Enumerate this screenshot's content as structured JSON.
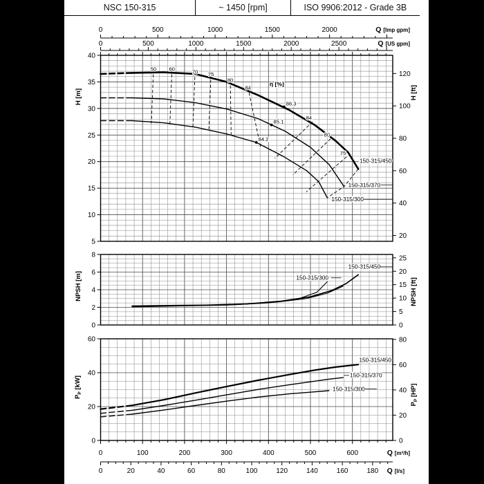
{
  "header": {
    "model": "NSC 150-315",
    "speed": "~ 1450 [rpm]",
    "standard": "ISO 9906:2012 - Grade 3B"
  },
  "axes": {
    "imp_gpm": {
      "q": "Q",
      "unit": "[Imp gpm]",
      "ticks": [
        0,
        500,
        1000,
        1500,
        2000
      ]
    },
    "us_gpm": {
      "q": "Q",
      "unit": "[US gpm]",
      "ticks": [
        0,
        500,
        1000,
        1500,
        2000,
        2500
      ]
    },
    "m3h": {
      "q": "Q",
      "unit": "[m³/h]",
      "ticks": [
        0,
        100,
        200,
        300,
        400,
        500,
        600
      ]
    },
    "ls": {
      "q": "Q",
      "unit": "[l/s]",
      "ticks": [
        0,
        20,
        40,
        60,
        80,
        100,
        120,
        140,
        160,
        180
      ]
    }
  },
  "ylabels": {
    "head_left": {
      "pre": "H",
      "sub": "",
      "post": " [m]"
    },
    "head_right": {
      "pre": "H",
      "sub": "",
      "post": " [ft]"
    },
    "npsh_left": {
      "pre": "NPSH",
      "sub": "",
      "post": " [m]"
    },
    "npsh_right": {
      "pre": "NPSH",
      "sub": "",
      "post": " [ft]"
    },
    "pow_left": {
      "pre": "P",
      "sub": "P",
      "post": " [kW]"
    },
    "pow_right": {
      "pre": "P",
      "sub": "P",
      "post": " [HP]"
    }
  },
  "chart_data": [
    {
      "id": "head",
      "type": "line",
      "title": "Head vs flow with iso-efficiency lines",
      "xlabel": "Q [m³/h]",
      "ylabel": "H [m]",
      "ylim": [
        5,
        40
      ],
      "xlim": [
        0,
        696
      ],
      "y_ticks_left": [
        40,
        35,
        30,
        25,
        20,
        15,
        10,
        5
      ],
      "y_ticks_right_ft": [
        120,
        100,
        80,
        60,
        40,
        20
      ],
      "series": [
        {
          "name": "150-315/450",
          "width": 2.6,
          "dash_until": 75,
          "points": [
            [
              0,
              36.5
            ],
            [
              75,
              36.7
            ],
            [
              150,
              36.8
            ],
            [
              225,
              36.5
            ],
            [
              300,
              35.0
            ],
            [
              375,
              32.5
            ],
            [
              450,
              29.7
            ],
            [
              510,
              26.9
            ],
            [
              560,
              23.9
            ],
            [
              590,
              21.7
            ],
            [
              614,
              18.6
            ]
          ],
          "label": {
            "text": "150-315/450",
            "q": 617,
            "v": 20.1
          }
        },
        {
          "name": "150-315/370",
          "width": 1.4,
          "dash_until": 75,
          "points": [
            [
              0,
              32.0
            ],
            [
              75,
              32.0
            ],
            [
              150,
              31.8
            ],
            [
              225,
              31.1
            ],
            [
              300,
              29.9
            ],
            [
              375,
              28.1
            ],
            [
              440,
              25.7
            ],
            [
              500,
              22.7
            ],
            [
              545,
              19.4
            ],
            [
              580,
              15.3
            ]
          ],
          "label": {
            "text": "150-315/370",
            "q": 590,
            "v": 15.6,
            "leadR": [
              668,
              695
            ]
          }
        },
        {
          "name": "150-315/300",
          "width": 1.4,
          "dash_until": 75,
          "points": [
            [
              0,
              27.7
            ],
            [
              75,
              27.7
            ],
            [
              150,
              27.3
            ],
            [
              225,
              26.5
            ],
            [
              300,
              25.2
            ],
            [
              371,
              23.6
            ],
            [
              437,
              20.9
            ],
            [
              491,
              18.3
            ],
            [
              520,
              16.2
            ],
            [
              540,
              13.2
            ]
          ],
          "label": {
            "text": "150-315/300",
            "q": 550,
            "v": 12.9,
            "leadR": [
              627,
              695
            ]
          }
        }
      ],
      "efficiency": {
        "label": "η [%]",
        "label_pos": [
          420,
          34.2
        ],
        "left_lines": [
          {
            "label": "50",
            "pts": [
              [
                126,
                37.4
              ],
              [
                121,
                27.2
              ]
            ]
          },
          {
            "label": "60",
            "pts": [
              [
                170,
                37.4
              ],
              [
                165,
                27.0
              ]
            ]
          },
          {
            "label": "70",
            "pts": [
              [
                225,
                36.9
              ],
              [
                220,
                26.5
              ]
            ]
          },
          {
            "label": "75",
            "pts": [
              [
                263,
                36.4
              ],
              [
                258,
                26.1
              ]
            ]
          },
          {
            "label": "80",
            "pts": [
              [
                309,
                35.3
              ],
              [
                311,
                25.0
              ]
            ]
          },
          {
            "label": "84",
            "pts": [
              [
                351,
                33.9
              ],
              [
                381,
                22.8
              ]
            ]
          }
        ],
        "right_lines": [
          {
            "label": "84",
            "pts": [
              [
                505,
                27.5
              ],
              [
                415,
                20.6
              ]
            ]
          },
          {
            "label": "80",
            "pts": [
              [
                548,
                24.3
              ],
              [
                458,
                17.5
              ]
            ]
          },
          {
            "label": "75",
            "pts": [
              [
                586,
                20.9
              ],
              [
                490,
                14.3
              ]
            ]
          }
        ],
        "end_envelope": [
          [
            614,
            18.6
          ],
          [
            580,
            15.3
          ],
          [
            540,
            13.2
          ]
        ],
        "bep": [
          {
            "label": "86.3",
            "q": 437,
            "h": 30.3
          },
          {
            "label": "85.1",
            "q": 407,
            "h": 26.9
          },
          {
            "label": "84.2",
            "q": 371,
            "h": 23.6
          }
        ]
      }
    },
    {
      "id": "npsh",
      "type": "line",
      "title": "NPSH vs flow",
      "xlabel": "Q [m³/h]",
      "ylabel": "NPSH [m]",
      "ylim": [
        0,
        8
      ],
      "xlim": [
        0,
        696
      ],
      "y_ticks_left": [
        8,
        6,
        4,
        2,
        0
      ],
      "y_ticks_right_ft": [
        25,
        20,
        15,
        10,
        5,
        0
      ],
      "series": [
        {
          "name": "150-315/450",
          "width": 1.6,
          "points": [
            [
              75,
              2.15
            ],
            [
              150,
              2.2
            ],
            [
              250,
              2.25
            ],
            [
              350,
              2.4
            ],
            [
              430,
              2.7
            ],
            [
              500,
              3.2
            ],
            [
              550,
              3.9
            ],
            [
              585,
              4.7
            ],
            [
              614,
              5.7
            ]
          ],
          "label": {
            "text": "150-315/450",
            "q": 590,
            "v": 6.6,
            "leadR": [
              665,
              695
            ]
          }
        },
        {
          "name": "150-315/370",
          "width": 1.1,
          "points": [
            [
              75,
              2.1
            ],
            [
              200,
              2.2
            ],
            [
              320,
              2.3
            ],
            [
              420,
              2.6
            ],
            [
              490,
              3.0
            ],
            [
              540,
              3.6
            ],
            [
              578,
              4.4
            ]
          ]
        },
        {
          "name": "150-315/300",
          "width": 1.1,
          "points": [
            [
              75,
              2.05
            ],
            [
              180,
              2.15
            ],
            [
              300,
              2.25
            ],
            [
              400,
              2.5
            ],
            [
              470,
              2.95
            ],
            [
              515,
              3.7
            ],
            [
              540,
              4.9
            ]
          ],
          "label": {
            "text": "150-315/300",
            "q": 466,
            "v": 5.35,
            "leadR": [
              549,
              573
            ]
          }
        }
      ]
    },
    {
      "id": "pow",
      "type": "line",
      "title": "Shaft power vs flow",
      "xlabel": "Q [m³/h]",
      "ylabel": "PP [kW]",
      "ylim": [
        0,
        60
      ],
      "xlim": [
        0,
        696
      ],
      "y_ticks_left": [
        60,
        40,
        20,
        0
      ],
      "y_ticks_right_hp": [
        80,
        60,
        40,
        20,
        0
      ],
      "series": [
        {
          "name": "150-315/450",
          "width": 2.2,
          "dash_until": 75,
          "points": [
            [
              0,
              18.5
            ],
            [
              75,
              20.7
            ],
            [
              150,
              24.0
            ],
            [
              225,
              28.0
            ],
            [
              300,
              31.8
            ],
            [
              375,
              35.5
            ],
            [
              450,
              38.9
            ],
            [
              510,
              41.5
            ],
            [
              560,
              43.3
            ],
            [
              614,
              44.8
            ]
          ],
          "label": {
            "text": "150-315/450",
            "q": 616,
            "v": 47.4
          }
        },
        {
          "name": "150-315/370",
          "width": 1.4,
          "dash_until": 75,
          "points": [
            [
              0,
              16.0
            ],
            [
              75,
              17.8
            ],
            [
              150,
              20.6
            ],
            [
              225,
              23.7
            ],
            [
              300,
              26.9
            ],
            [
              375,
              30.1
            ],
            [
              450,
              32.9
            ],
            [
              510,
              35.0
            ],
            [
              545,
              36.2
            ],
            [
              578,
              37.1
            ]
          ],
          "label": {
            "text": "150-315/370",
            "q": 594,
            "v": 38.4,
            "leadL": [
              579,
              592
            ]
          }
        },
        {
          "name": "150-315/300",
          "width": 1.4,
          "dash_until": 75,
          "points": [
            [
              0,
              13.9
            ],
            [
              75,
              15.5
            ],
            [
              150,
              17.9
            ],
            [
              225,
              20.6
            ],
            [
              300,
              23.2
            ],
            [
              375,
              25.6
            ],
            [
              450,
              27.5
            ],
            [
              500,
              28.5
            ],
            [
              544,
              29.4
            ]
          ],
          "label": {
            "text": "150-315/300",
            "q": 553,
            "v": 30.4,
            "leadR": [
              630,
              658
            ]
          }
        }
      ]
    }
  ]
}
